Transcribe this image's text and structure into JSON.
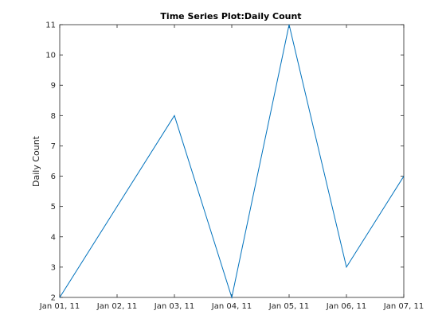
{
  "chart_data": {
    "type": "line",
    "title": "Time Series Plot:Daily Count",
    "xlabel": "",
    "ylabel": "Daily Count",
    "x": [
      "Jan 01, 11",
      "Jan 02, 11",
      "Jan 03, 11",
      "Jan 04, 11",
      "Jan 05, 11",
      "Jan 06, 11",
      "Jan 07, 11"
    ],
    "x_ticks": [
      "Jan 01, 11",
      "Jan 02, 11",
      "Jan 03, 11",
      "Jan 04, 11",
      "Jan 05, 11",
      "Jan 06, 11",
      "Jan 07, 11"
    ],
    "series": [
      {
        "values": [
          2,
          5,
          8,
          2,
          11,
          3,
          6
        ],
        "color": "#0072bd"
      }
    ],
    "ylim": [
      2,
      11
    ],
    "y_ticks": [
      2,
      3,
      4,
      5,
      6,
      7,
      8,
      9,
      10,
      11
    ],
    "grid": false,
    "box": true
  }
}
